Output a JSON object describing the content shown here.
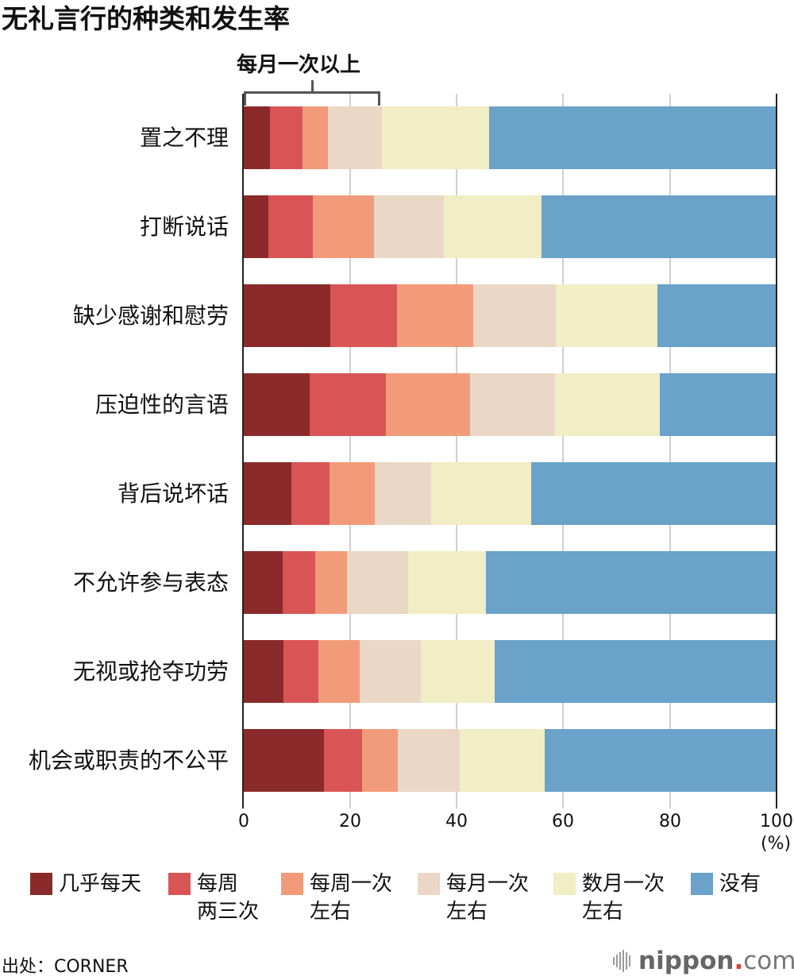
{
  "title": "无礼言行的种类和发生率",
  "bracket": {
    "label": "每月一次以上"
  },
  "axis": {
    "ticks": [
      "0",
      "20",
      "40",
      "60",
      "80",
      "100"
    ],
    "unit": "(%)"
  },
  "legend": [
    {
      "label_line1": "几乎每天",
      "label_line2": "",
      "color": "#8B2A2A"
    },
    {
      "label_line1": "每周",
      "label_line2": "两三次",
      "color": "#D95555"
    },
    {
      "label_line1": "每周一次",
      "label_line2": "左右",
      "color": "#F29B7A"
    },
    {
      "label_line1": "每月一次",
      "label_line2": "左右",
      "color": "#EBD7C6"
    },
    {
      "label_line1": "数月一次",
      "label_line2": "左右",
      "color": "#F1EDC5"
    },
    {
      "label_line1": "没有",
      "label_line2": "",
      "color": "#6AA2C9"
    }
  ],
  "rows": [
    {
      "label": "置之不理"
    },
    {
      "label": "打断说话"
    },
    {
      "label": "缺少感谢和慰劳"
    },
    {
      "label": "压迫性的言语"
    },
    {
      "label": "背后说坏话"
    },
    {
      "label": "不允许参与表态"
    },
    {
      "label": "无视或抢夺功劳"
    },
    {
      "label": "机会或职责的不公平"
    }
  ],
  "source": "出处：CORNER",
  "logo": {
    "name": "nippon",
    "dot": ".",
    "tld": "com"
  },
  "chart_data": {
    "type": "bar",
    "orientation": "horizontal",
    "stacked": true,
    "title": "无礼言行的种类和发生率",
    "xlabel": "(%)",
    "ylabel": "",
    "xlim": [
      0,
      100
    ],
    "xticks": [
      0,
      20,
      40,
      60,
      80,
      100
    ],
    "grid": true,
    "legend_position": "bottom",
    "annotations": [
      "每月一次以上 (bracket spanning first four categories)"
    ],
    "categories": [
      "置之不理",
      "打断说话",
      "缺少感谢和慰劳",
      "压迫性的言语",
      "背后说坏话",
      "不允许参与表态",
      "无视或抢夺功劳",
      "机会或职责的不公平"
    ],
    "series": [
      {
        "name": "几乎每天",
        "color": "#8B2A2A",
        "values": [
          4.9,
          4.6,
          16.2,
          12.4,
          8.9,
          7.3,
          7.5,
          15.1
        ]
      },
      {
        "name": "每周两三次",
        "color": "#D95555",
        "values": [
          6.1,
          8.4,
          12.6,
          14.3,
          7.2,
          6.1,
          6.5,
          7.1
        ]
      },
      {
        "name": "每周一次左右",
        "color": "#F29B7A",
        "values": [
          4.8,
          11.4,
          14.3,
          15.8,
          8.5,
          6.0,
          7.8,
          6.7
        ]
      },
      {
        "name": "每月一次左右",
        "color": "#EBD7C6",
        "values": [
          10.1,
          13.2,
          15.5,
          15.9,
          10.6,
          11.4,
          11.4,
          11.6
        ]
      },
      {
        "name": "数月一次左右",
        "color": "#F1EDC5",
        "values": [
          20.2,
          18.3,
          19.0,
          19.7,
          18.7,
          14.7,
          13.9,
          16.0
        ]
      },
      {
        "name": "没有",
        "color": "#6AA2C9",
        "values": [
          53.9,
          44.1,
          22.4,
          21.9,
          46.1,
          54.5,
          52.9,
          43.5
        ]
      }
    ]
  }
}
